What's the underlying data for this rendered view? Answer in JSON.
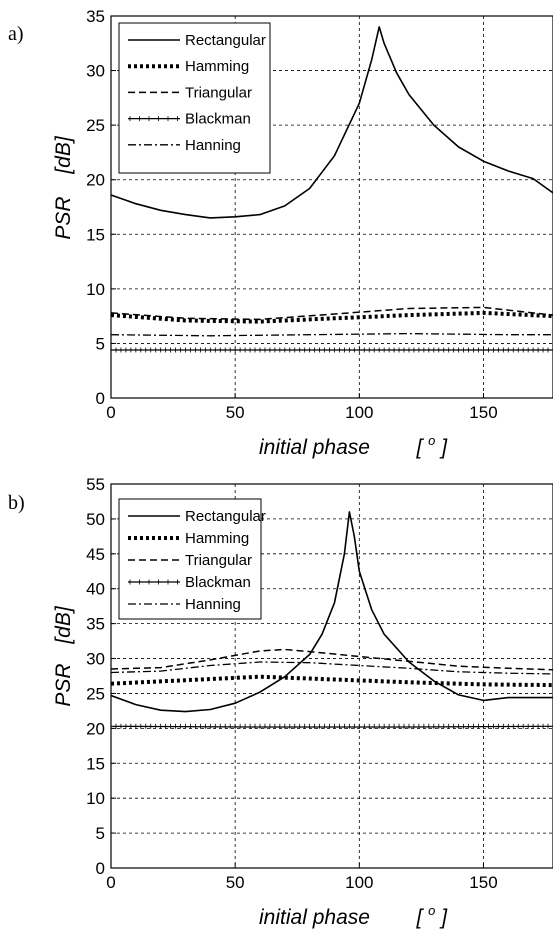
{
  "chart_data": [
    {
      "panel_label": "a)",
      "type": "line",
      "xlabel": "initial phase",
      "xunit": "o",
      "ylabel": "PSR",
      "yunit": "[dB]",
      "xlim": [
        0,
        178
      ],
      "ylim": [
        0,
        35
      ],
      "xticks": [
        0,
        50,
        100,
        150
      ],
      "yticks": [
        0,
        5,
        10,
        15,
        20,
        25,
        30,
        35
      ],
      "grid": true,
      "legend": "top-left",
      "series": [
        {
          "name": "Rectangular",
          "style": "solid",
          "x": [
            0,
            10,
            20,
            30,
            40,
            50,
            60,
            70,
            80,
            90,
            100,
            105,
            108,
            110,
            115,
            120,
            130,
            140,
            150,
            160,
            170,
            178
          ],
          "y": [
            18.6,
            17.8,
            17.2,
            16.8,
            16.5,
            16.6,
            16.8,
            17.6,
            19.2,
            22.2,
            27.0,
            31.0,
            34.0,
            32.5,
            29.8,
            27.8,
            25.0,
            23.0,
            21.7,
            20.8,
            20.1,
            18.8
          ]
        },
        {
          "name": "Hamming",
          "style": "dotted-thick",
          "x": [
            0,
            30,
            60,
            90,
            120,
            150,
            178
          ],
          "y": [
            7.6,
            7.1,
            7.0,
            7.3,
            7.6,
            7.8,
            7.5
          ]
        },
        {
          "name": "Triangular",
          "style": "dashed",
          "x": [
            0,
            30,
            60,
            90,
            120,
            150,
            178
          ],
          "y": [
            7.8,
            7.3,
            7.2,
            7.7,
            8.2,
            8.3,
            7.6
          ]
        },
        {
          "name": "Blackman",
          "style": "solid-marker",
          "x": [
            0,
            60,
            120,
            178
          ],
          "y": [
            4.4,
            4.4,
            4.4,
            4.4
          ]
        },
        {
          "name": "Hanning",
          "style": "dash-dot",
          "x": [
            0,
            40,
            80,
            120,
            160,
            178
          ],
          "y": [
            5.8,
            5.7,
            5.8,
            5.9,
            5.8,
            5.8
          ]
        }
      ]
    },
    {
      "panel_label": "b)",
      "type": "line",
      "xlabel": "initial phase",
      "xunit": "o",
      "ylabel": "PSR",
      "yunit": "[dB]",
      "xlim": [
        0,
        178
      ],
      "ylim": [
        0,
        55
      ],
      "xticks": [
        0,
        50,
        100,
        150
      ],
      "yticks": [
        0,
        5,
        10,
        15,
        20,
        25,
        30,
        35,
        40,
        45,
        50,
        55
      ],
      "grid": true,
      "legend": "top-left",
      "series": [
        {
          "name": "Rectangular",
          "style": "solid",
          "x": [
            0,
            10,
            20,
            30,
            40,
            50,
            60,
            70,
            80,
            85,
            90,
            94,
            96,
            98,
            100,
            105,
            110,
            120,
            130,
            140,
            150,
            160,
            170,
            178
          ],
          "y": [
            24.7,
            23.4,
            22.6,
            22.4,
            22.7,
            23.6,
            25.2,
            27.4,
            30.6,
            33.5,
            38.0,
            45.0,
            51.0,
            47.5,
            42.5,
            37.0,
            33.5,
            29.5,
            26.8,
            24.8,
            24.0,
            24.4,
            24.4,
            24.4
          ]
        },
        {
          "name": "Hamming",
          "style": "dotted-thick",
          "x": [
            0,
            30,
            60,
            90,
            120,
            150,
            178
          ],
          "y": [
            26.4,
            26.9,
            27.4,
            27.0,
            26.6,
            26.3,
            26.2
          ]
        },
        {
          "name": "Triangular",
          "style": "dashed",
          "x": [
            0,
            20,
            40,
            60,
            70,
            80,
            100,
            120,
            140,
            160,
            178
          ],
          "y": [
            28.5,
            28.7,
            29.8,
            31.1,
            31.3,
            31.0,
            30.3,
            29.6,
            28.9,
            28.6,
            28.4
          ]
        },
        {
          "name": "Blackman",
          "style": "solid-marker",
          "x": [
            0,
            60,
            120,
            178
          ],
          "y": [
            20.3,
            20.2,
            20.2,
            20.3
          ]
        },
        {
          "name": "Hanning",
          "style": "dash-dot",
          "x": [
            0,
            20,
            40,
            60,
            80,
            100,
            120,
            140,
            160,
            178
          ],
          "y": [
            28.0,
            28.2,
            29.0,
            29.5,
            29.4,
            29.0,
            28.6,
            28.1,
            27.9,
            27.8
          ]
        }
      ]
    }
  ]
}
